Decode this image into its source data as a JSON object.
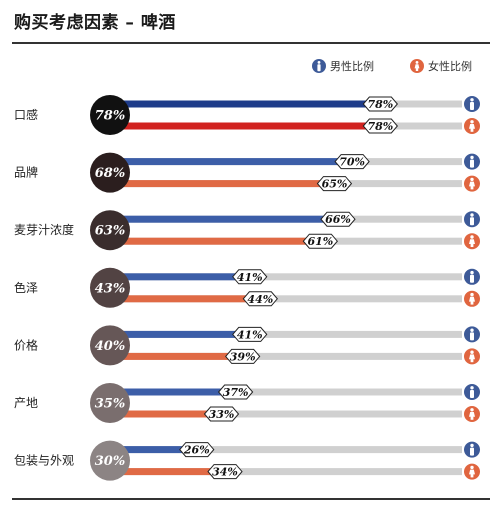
{
  "title": "购买考虑因素 – 啤酒",
  "legend": {
    "male": "男性比例",
    "female": "女性比例"
  },
  "icons": {
    "male": "male-person-icon",
    "female": "female-person-icon"
  },
  "colors": {
    "male_bar": "#3c5ea8",
    "male_icon": "#3d5a98",
    "female_bar": "#e06a45",
    "female_icon": "#e0653f",
    "top_bar_male": "#1e3c8a",
    "top_bar_female": "#d1221f",
    "track": "#d0d0d0",
    "circles": [
      "#111111",
      "#2b1e1e",
      "#3a2d2d",
      "#524343",
      "#665757",
      "#7a6e6e",
      "#8c8484"
    ]
  },
  "chart_data": {
    "type": "bar",
    "categories": [
      "口感",
      "品牌",
      "麦芽汁浓度",
      "色泽",
      "价格",
      "产地",
      "包装与外观"
    ],
    "overall": [
      78,
      68,
      63,
      43,
      40,
      35,
      30
    ],
    "overall_labels": [
      "78%",
      "68%",
      "63%",
      "43%",
      "40%",
      "35%",
      "30%"
    ],
    "series": [
      {
        "name": "男性比例",
        "values": [
          78,
          70,
          66,
          41,
          41,
          37,
          26
        ],
        "labels": [
          "78%",
          "70%",
          "66%",
          "41%",
          "41%",
          "37%",
          "26%"
        ]
      },
      {
        "name": "女性比例",
        "values": [
          78,
          65,
          61,
          44,
          39,
          33,
          34
        ],
        "labels": [
          "78%",
          "65%",
          "61%",
          "44%",
          "39%",
          "33%",
          "34%"
        ]
      }
    ],
    "xlim": [
      0,
      100
    ]
  }
}
